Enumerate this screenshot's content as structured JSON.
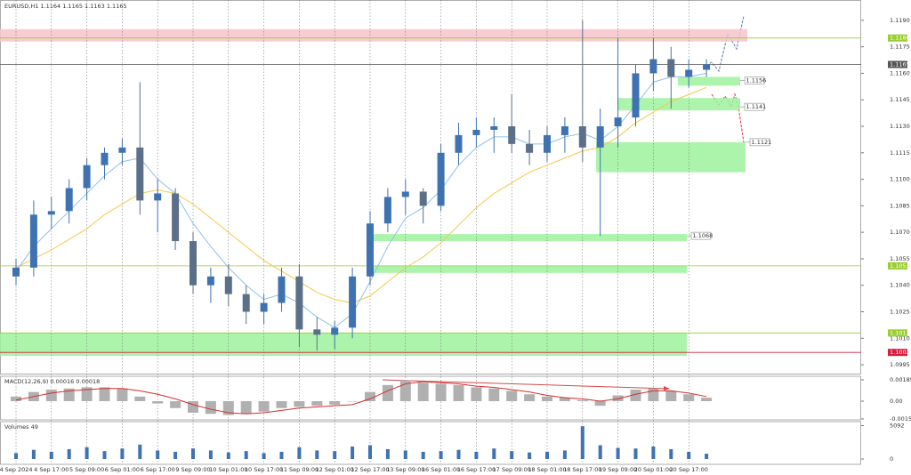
{
  "chart_data": {
    "type": "candlestick",
    "title": "EURUSD,H1  1.1164 1.1165 1.1163 1.1165",
    "categories": [
      "4 Sep 2024",
      null,
      "4 Sep 17:00",
      null,
      "5 Sep 09:00",
      null,
      "6 Sep 01:00",
      null,
      "6 Sep 17:00",
      null,
      "9 Sep 09:00",
      null,
      "10 Sep 01:00",
      null,
      "10 Sep 17:00",
      null,
      "11 Sep 09:00",
      null,
      "12 Sep 01:00",
      null,
      "12 Sep 17:00",
      null,
      "13 Sep 09:00",
      null,
      "16 Sep 01:00",
      null,
      "16 Sep 17:00",
      null,
      "17 Sep 09:00",
      null,
      "18 Sep 01:00",
      null,
      "18 Sep 17:00",
      null,
      "19 Sep 09:00",
      null,
      "20 Sep 01:00",
      null,
      "20 Sep 17:00",
      null
    ],
    "open": [
      1.1045,
      1.105,
      1.108,
      1.1082,
      1.1095,
      1.1108,
      1.1115,
      1.1118,
      1.1088,
      1.1092,
      1.1065,
      1.104,
      1.1045,
      1.1035,
      1.1025,
      1.103,
      1.1045,
      1.1015,
      1.1012,
      1.1016,
      1.1045,
      1.1075,
      1.109,
      1.1093,
      1.1085,
      1.1115,
      1.1125,
      1.1128,
      1.113,
      1.112,
      1.1115,
      1.1125,
      1.113,
      1.1118,
      1.113,
      1.1135,
      1.116,
      1.1168,
      1.1158,
      1.1162
    ],
    "high": [
      1.1055,
      1.1088,
      1.109,
      1.11,
      1.1112,
      1.1118,
      1.1123,
      1.1155,
      1.11,
      1.1095,
      1.107,
      1.105,
      1.1052,
      1.104,
      1.1035,
      1.105,
      1.1052,
      1.1022,
      1.102,
      1.105,
      1.1082,
      1.1095,
      1.11,
      1.1095,
      1.112,
      1.1132,
      1.1135,
      1.1135,
      1.1148,
      1.1128,
      1.113,
      1.1135,
      1.119,
      1.114,
      1.118,
      1.1165,
      1.118,
      1.1175,
      1.1168,
      1.1168
    ],
    "low": [
      1.104,
      1.1045,
      1.1072,
      1.1075,
      1.1088,
      1.11,
      1.1108,
      1.108,
      1.107,
      1.106,
      1.1035,
      1.103,
      1.1028,
      1.1018,
      1.1018,
      1.1025,
      1.1005,
      1.1003,
      1.1004,
      1.101,
      1.104,
      1.107,
      1.108,
      1.1075,
      1.1082,
      1.1108,
      1.1118,
      1.1115,
      1.1115,
      1.1108,
      1.111,
      1.1115,
      1.111,
      1.1068,
      1.1118,
      1.113,
      1.115,
      1.114,
      1.1152,
      1.1158
    ],
    "close": [
      1.105,
      1.108,
      1.1082,
      1.1095,
      1.1108,
      1.1115,
      1.1118,
      1.1088,
      1.1092,
      1.1065,
      1.104,
      1.1045,
      1.1035,
      1.1025,
      1.103,
      1.1045,
      1.1015,
      1.1012,
      1.1016,
      1.1045,
      1.1075,
      1.109,
      1.1093,
      1.1085,
      1.1115,
      1.1125,
      1.1128,
      1.113,
      1.112,
      1.1115,
      1.1125,
      1.113,
      1.1118,
      1.113,
      1.1135,
      1.116,
      1.1168,
      1.1158,
      1.1162,
      1.1165
    ],
    "up_color": "#3f72b0",
    "down_color": "#5b6f88",
    "moving_averages": [
      {
        "color": "#f2c94c",
        "values": [
          1.105,
          1.1055,
          1.106,
          1.1066,
          1.1072,
          1.108,
          1.1086,
          1.1092,
          1.1094,
          1.1092,
          1.1086,
          1.1078,
          1.107,
          1.1062,
          1.1054,
          1.1048,
          1.1042,
          1.1036,
          1.1032,
          1.103,
          1.1034,
          1.1042,
          1.105,
          1.1056,
          1.1064,
          1.1074,
          1.1084,
          1.1092,
          1.1098,
          1.1104,
          1.1108,
          1.1112,
          1.1116,
          1.1118,
          1.1124,
          1.1132,
          1.1138,
          1.1144,
          1.1148,
          1.1152
        ]
      },
      {
        "color": "#8fc1e8",
        "values": [
          1.1048,
          1.1062,
          1.1072,
          1.1082,
          1.1092,
          1.1102,
          1.111,
          1.1112,
          1.11,
          1.1092,
          1.1075,
          1.1062,
          1.105,
          1.104,
          1.1032,
          1.1035,
          1.103,
          1.1022,
          1.1016,
          1.1024,
          1.1042,
          1.1062,
          1.1078,
          1.1084,
          1.1094,
          1.1108,
          1.1118,
          1.1124,
          1.1124,
          1.112,
          1.112,
          1.1124,
          1.1126,
          1.1122,
          1.113,
          1.1142,
          1.1155,
          1.1158,
          1.1158,
          1.116
        ]
      }
    ],
    "ylim": [
      1.099,
      1.1201
    ],
    "yticks": [
      1.0995,
      {
        "value": 1.101,
        "label": "1.1010"
      },
      1.1025,
      {
        "value": 1.104,
        "label": "1.1040"
      },
      1.1055,
      {
        "value": 1.107,
        "label": "1.1070"
      },
      1.1085,
      {
        "value": 1.11,
        "label": "1.1100"
      },
      1.1115,
      {
        "value": 1.113,
        "label": "1.1130"
      },
      1.1145,
      {
        "value": 1.116,
        "label": "1.1160"
      },
      1.1175,
      {
        "value": 1.119,
        "label": "1.1190"
      }
    ],
    "levels": [
      {
        "value": 1.118,
        "label": "1.1180",
        "color": "#9acd32"
      },
      {
        "value": 1.1165,
        "color": "#555555"
      },
      {
        "value": 1.1051,
        "color": "#9acd32"
      },
      {
        "value": 1.1013,
        "color": "#9acd32"
      },
      {
        "value": 1.1002,
        "color": "#d81b3c"
      }
    ],
    "zones": [
      {
        "low": 1.1178,
        "high": 1.1185,
        "color": "#f6c3cb"
      },
      {
        "low": 1.1153,
        "high": 1.1158,
        "price": 1.1156,
        "color": "#9ef29e"
      },
      {
        "low": 1.1139,
        "high": 1.1146,
        "price": 1.1141,
        "color": "#9ef29e"
      },
      {
        "low": 1.1104,
        "high": 1.1121,
        "price": 1.1121,
        "color": "#9ef29e"
      },
      {
        "low": 1.1065,
        "high": 1.1069,
        "price": 1.1068,
        "color": "#9ef29e"
      },
      {
        "low": 1.1047,
        "high": 1.1051,
        "color": "#9ef29e"
      },
      {
        "low": 1.1,
        "high": 1.1013,
        "color": "#9ef29e"
      }
    ]
  },
  "macd": {
    "title": "MACD(12,26,9) 0.00016 0.00018",
    "ylim": [
      -0.00162,
      0.00216
    ],
    "yticks": [
      0.00185,
      {
        "value": 0,
        "label": "0.00"
      },
      -0.00154
    ],
    "color": "#b0b0b0",
    "signal_color": "#d62d2d",
    "histogram": [
      0.0004,
      0.0008,
      0.001,
      0.0011,
      0.0012,
      0.0012,
      0.0011,
      0.0004,
      -0.0002,
      -0.0006,
      -0.001,
      -0.0011,
      -0.0012,
      -0.0011,
      -0.0009,
      -0.0006,
      -0.0005,
      -0.0004,
      -0.0003,
      0.0,
      0.0008,
      0.0014,
      0.0018,
      0.0016,
      0.0015,
      0.0014,
      0.0012,
      0.0011,
      0.0009,
      0.0006,
      0.0004,
      0.0003,
      0.0001,
      -0.0004,
      0.0005,
      0.001,
      0.0011,
      0.0009,
      0.0006,
      0.0003
    ],
    "signal": [
      0.0001,
      0.0004,
      0.0007,
      0.0009,
      0.001,
      0.0011,
      0.0011,
      0.0009,
      0.0006,
      0.0002,
      -0.0003,
      -0.0007,
      -0.001,
      -0.0011,
      -0.001,
      -0.0008,
      -0.0006,
      -0.0005,
      -0.0004,
      -0.0003,
      0.0002,
      0.0009,
      0.0015,
      0.0017,
      0.0016,
      0.0015,
      0.0013,
      0.0012,
      0.001,
      0.0008,
      0.0005,
      0.0003,
      0.0002,
      0.0,
      0.0002,
      0.0006,
      0.0009,
      0.0009,
      0.0007,
      0.0004
    ]
  },
  "volumes": {
    "title": "Volumes 49",
    "ylim": [
      0,
      5700
    ],
    "yticks": [
      5092,
      0
    ],
    "color": "#3f72b0",
    "values": [
      900,
      1400,
      1100,
      1500,
      1800,
      1200,
      1600,
      2200,
      1300,
      1100,
      1600,
      1300,
      1000,
      1200,
      900,
      1100,
      1800,
      1300,
      1200,
      1900,
      2100,
      1500,
      1300,
      1100,
      1200,
      1400,
      1100,
      1600,
      1200,
      1000,
      1100,
      1300,
      5000,
      2100,
      1700,
      1600,
      1900,
      1500,
      1100,
      800
    ]
  }
}
